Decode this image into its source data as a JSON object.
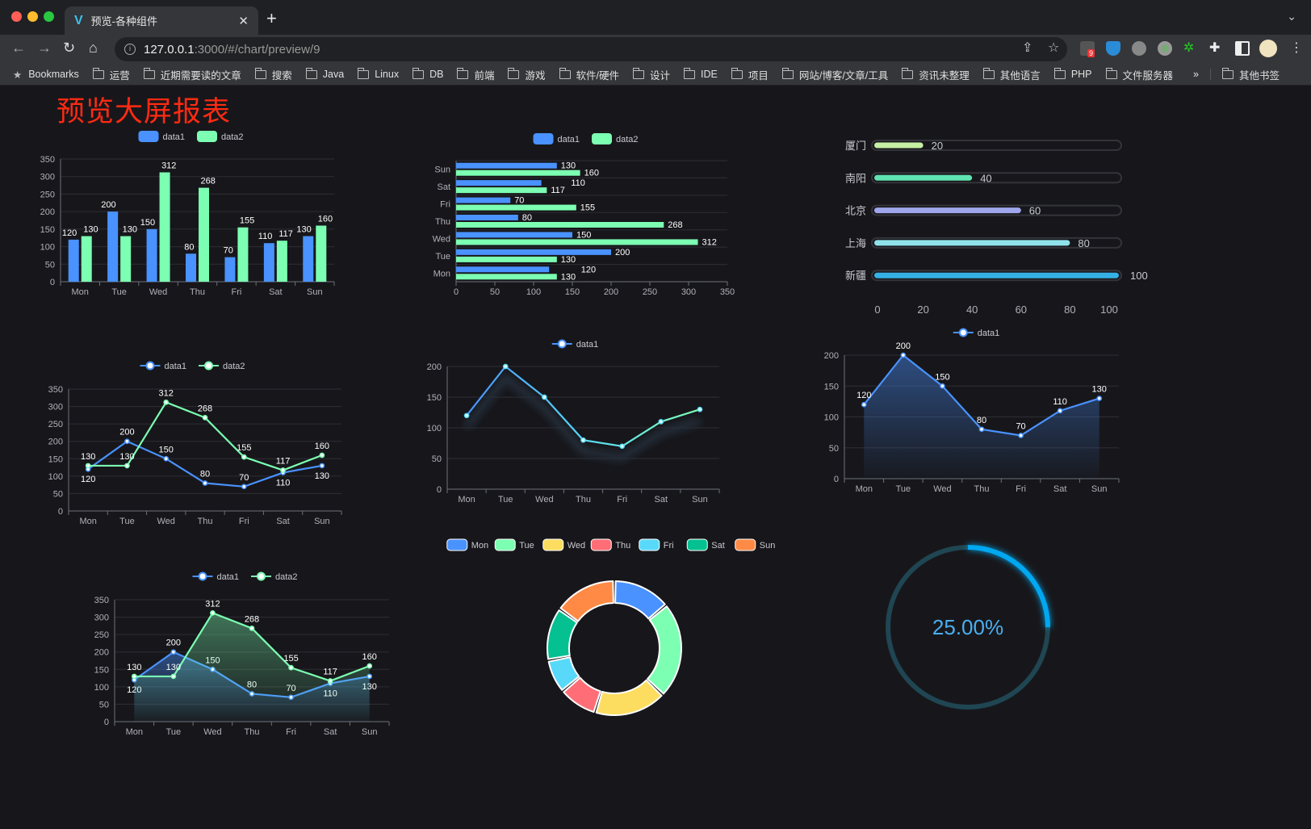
{
  "browser": {
    "tab_title": "预览-各种组件",
    "url_host": "127.0.0.1",
    "url_path": ":3000/#/chart/preview/9",
    "extension_badge": "9",
    "bookmarks": [
      "Bookmarks",
      "运营",
      "近期需要读的文章",
      "搜索",
      "Java",
      "Linux",
      "DB",
      "前端",
      "游戏",
      "软件/硬件",
      "设计",
      "IDE",
      "项目",
      "网站/博客/文章/工具",
      "资讯未整理",
      "其他语言",
      "PHP",
      "文件服务器"
    ],
    "overflow": "»",
    "other_bookmarks": "其他书签"
  },
  "page": {
    "title": "预览大屏报表",
    "title_color": "#ff2a12"
  },
  "chart_data": [
    {
      "type": "bar",
      "orientation": "vertical",
      "categories": [
        "Mon",
        "Tue",
        "Wed",
        "Thu",
        "Fri",
        "Sat",
        "Sun"
      ],
      "ylim": [
        0,
        350
      ],
      "yticks": [
        0,
        50,
        100,
        150,
        200,
        250,
        300,
        350
      ],
      "legend": "top-center",
      "grid": true,
      "series": [
        {
          "name": "data1",
          "color": "#4992ff",
          "values": [
            120,
            200,
            150,
            80,
            70,
            110,
            130
          ]
        },
        {
          "name": "data2",
          "color": "#7cffb2",
          "values": [
            130,
            130,
            312,
            268,
            155,
            117,
            160
          ]
        }
      ]
    },
    {
      "type": "bar",
      "orientation": "horizontal",
      "categories": [
        "Mon",
        "Tue",
        "Wed",
        "Thu",
        "Fri",
        "Sat",
        "Sun"
      ],
      "xlim": [
        0,
        350
      ],
      "xticks": [
        0,
        50,
        100,
        150,
        200,
        250,
        300,
        350
      ],
      "legend": "top-center",
      "grid": true,
      "series": [
        {
          "name": "data1",
          "color": "#4992ff",
          "values": [
            120,
            200,
            150,
            80,
            70,
            110,
            130
          ]
        },
        {
          "name": "data2",
          "color": "#7cffb2",
          "values": [
            130,
            130,
            312,
            268,
            155,
            117,
            160
          ]
        }
      ]
    },
    {
      "type": "bar",
      "orientation": "progress",
      "categories": [
        "厦门",
        "南阳",
        "北京",
        "上海",
        "新疆"
      ],
      "values": [
        20,
        40,
        60,
        80,
        100
      ],
      "colors": [
        "#c6f0a4",
        "#5fe3b0",
        "#9fa6ec",
        "#90e2ea",
        "#35b0e6"
      ],
      "xlim": [
        0,
        100
      ],
      "xticks": [
        0,
        20,
        40,
        60,
        80,
        100
      ]
    },
    {
      "type": "line",
      "categories": [
        "Mon",
        "Tue",
        "Wed",
        "Thu",
        "Fri",
        "Sat",
        "Sun"
      ],
      "ylim": [
        0,
        350
      ],
      "yticks": [
        0,
        50,
        100,
        150,
        200,
        250,
        300,
        350
      ],
      "legend": "top-center",
      "grid": true,
      "series": [
        {
          "name": "data1",
          "color": "#4992ff",
          "values": [
            120,
            200,
            150,
            80,
            70,
            110,
            130
          ]
        },
        {
          "name": "data2",
          "color": "#7cffb2",
          "values": [
            130,
            130,
            312,
            268,
            155,
            117,
            160
          ]
        }
      ]
    },
    {
      "type": "line",
      "categories": [
        "Mon",
        "Tue",
        "Wed",
        "Thu",
        "Fri",
        "Sat",
        "Sun"
      ],
      "ylim": [
        0,
        200
      ],
      "yticks": [
        0,
        50,
        100,
        150,
        200
      ],
      "legend": "top-center",
      "grid": true,
      "gradient_colors": [
        "#4992ff",
        "#58d9f9",
        "#7cffb2"
      ],
      "series": [
        {
          "name": "data1",
          "color": "#4992ff",
          "values": [
            120,
            200,
            150,
            80,
            70,
            110,
            130
          ]
        }
      ]
    },
    {
      "type": "area",
      "categories": [
        "Mon",
        "Tue",
        "Wed",
        "Thu",
        "Fri",
        "Sat",
        "Sun"
      ],
      "ylim": [
        0,
        200
      ],
      "yticks": [
        0,
        50,
        100,
        150,
        200
      ],
      "legend": "top-center",
      "grid": true,
      "series": [
        {
          "name": "data1",
          "color": "#4992ff",
          "values": [
            120,
            200,
            150,
            80,
            70,
            110,
            130
          ]
        }
      ]
    },
    {
      "type": "area",
      "categories": [
        "Mon",
        "Tue",
        "Wed",
        "Thu",
        "Fri",
        "Sat",
        "Sun"
      ],
      "ylim": [
        0,
        350
      ],
      "yticks": [
        0,
        50,
        100,
        150,
        200,
        250,
        300,
        350
      ],
      "legend": "top-center",
      "grid": true,
      "series": [
        {
          "name": "data1",
          "color": "#4992ff",
          "values": [
            120,
            200,
            150,
            80,
            70,
            110,
            130
          ]
        },
        {
          "name": "data2",
          "color": "#7cffb2",
          "values": [
            130,
            130,
            312,
            268,
            155,
            117,
            160
          ]
        }
      ]
    },
    {
      "type": "pie",
      "donut": true,
      "legend": "top-center",
      "categories": [
        "Mon",
        "Tue",
        "Wed",
        "Thu",
        "Fri",
        "Sat",
        "Sun"
      ],
      "values": [
        120,
        200,
        150,
        80,
        70,
        110,
        130
      ],
      "colors": [
        "#4992ff",
        "#7cffb2",
        "#fddd60",
        "#ff6e76",
        "#58d9f9",
        "#05c091",
        "#ff8a45"
      ]
    },
    {
      "type": "gauge",
      "value": 25,
      "label": "25.00%",
      "color": "#00a8f0",
      "track_color": "#1f4652",
      "label_color": "#4aaef0"
    }
  ]
}
